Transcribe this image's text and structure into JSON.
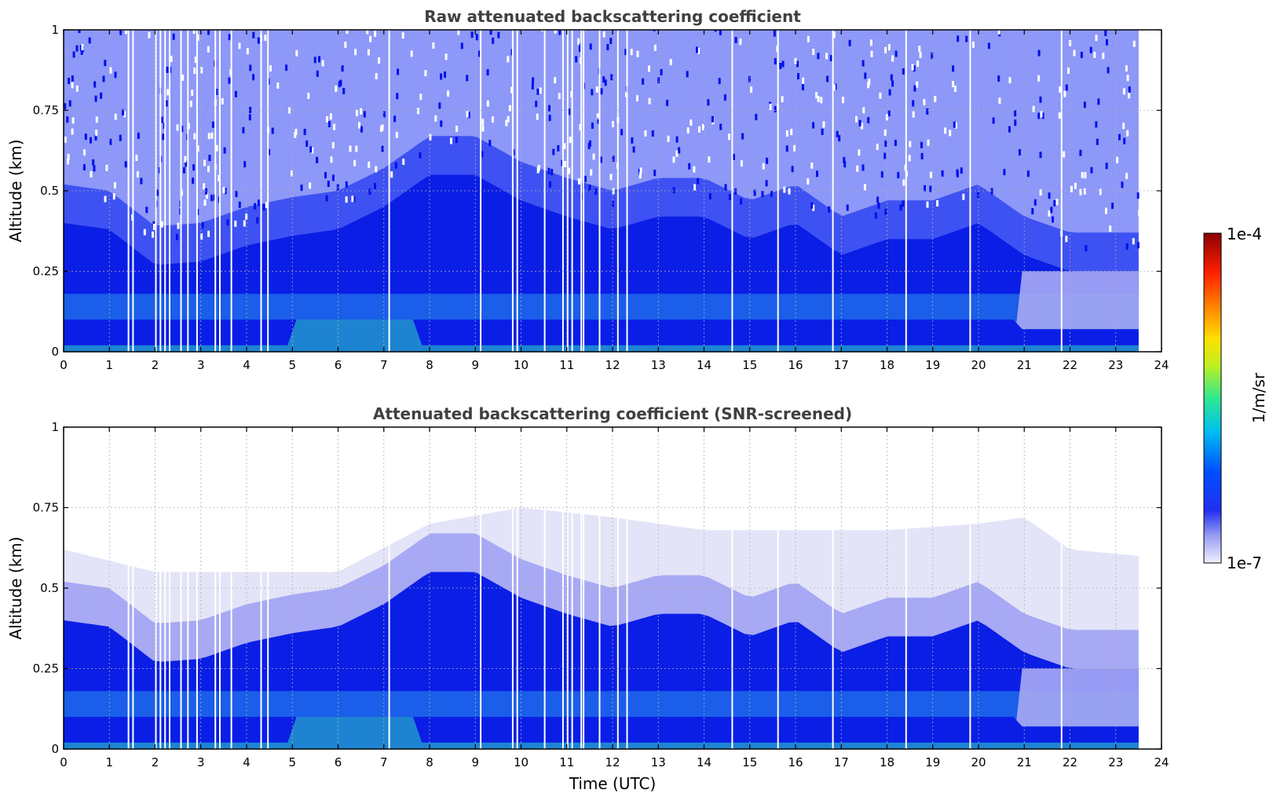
{
  "chart_data": [
    {
      "type": "heatmap",
      "title": "Raw attenuated backscattering coefficient",
      "xlabel": "",
      "ylabel": "Altitude (km)",
      "xlim": [
        0,
        24
      ],
      "ylim": [
        0,
        1
      ],
      "x_ticks": [
        "0",
        "1",
        "2",
        "3",
        "4",
        "5",
        "6",
        "7",
        "8",
        "9",
        "10",
        "11",
        "12",
        "13",
        "14",
        "15",
        "16",
        "17",
        "18",
        "19",
        "20",
        "21",
        "22",
        "23",
        "24"
      ],
      "y_ticks": [
        "0",
        "0.25",
        "0.5",
        "0.75",
        "1"
      ],
      "grid": true,
      "data_end_time": 23.5,
      "dense_layer_top_km": [
        [
          0,
          0.4
        ],
        [
          1,
          0.38
        ],
        [
          2,
          0.27
        ],
        [
          3,
          0.28
        ],
        [
          4,
          0.33
        ],
        [
          5,
          0.36
        ],
        [
          6,
          0.38
        ],
        [
          7,
          0.45
        ],
        [
          8,
          0.55
        ],
        [
          9,
          0.55
        ],
        [
          10,
          0.47
        ],
        [
          11,
          0.42
        ],
        [
          12,
          0.38
        ],
        [
          13,
          0.42
        ],
        [
          14,
          0.42
        ],
        [
          15,
          0.35
        ],
        [
          16,
          0.4
        ],
        [
          17,
          0.3
        ],
        [
          18,
          0.35
        ],
        [
          19,
          0.35
        ],
        [
          20,
          0.4
        ],
        [
          21,
          0.3
        ],
        [
          22,
          0.25
        ],
        [
          23,
          0.25
        ],
        [
          23.5,
          0.25
        ]
      ],
      "gap_times_utc": [
        1.4,
        1.5,
        2.0,
        2.1,
        2.2,
        2.3,
        2.55,
        2.7,
        2.9,
        3.3,
        3.4,
        3.65,
        4.3,
        4.45,
        7.1,
        9.1,
        9.8,
        9.9,
        10.5,
        10.9,
        11.0,
        11.1,
        11.3,
        11.35,
        11.7,
        12.1,
        12.3,
        14.6,
        15.6,
        16.8,
        18.4,
        19.8,
        21.8
      ]
    },
    {
      "type": "heatmap",
      "title": "Attenuated backscattering coefficient (SNR-screened)",
      "xlabel": "Time (UTC)",
      "ylabel": "Altitude (km)",
      "xlim": [
        0,
        24
      ],
      "ylim": [
        0,
        1
      ],
      "x_ticks": [
        "0",
        "1",
        "2",
        "3",
        "4",
        "5",
        "6",
        "7",
        "8",
        "9",
        "10",
        "11",
        "12",
        "13",
        "14",
        "15",
        "16",
        "17",
        "18",
        "19",
        "20",
        "21",
        "22",
        "23",
        "24"
      ],
      "y_ticks": [
        "0",
        "0.25",
        "0.5",
        "0.75",
        "1"
      ],
      "grid": true,
      "data_end_time": 23.5,
      "dense_layer_top_km": [
        [
          0,
          0.4
        ],
        [
          1,
          0.38
        ],
        [
          2,
          0.27
        ],
        [
          3,
          0.28
        ],
        [
          4,
          0.33
        ],
        [
          5,
          0.36
        ],
        [
          6,
          0.38
        ],
        [
          7,
          0.45
        ],
        [
          8,
          0.55
        ],
        [
          9,
          0.55
        ],
        [
          10,
          0.47
        ],
        [
          11,
          0.42
        ],
        [
          12,
          0.38
        ],
        [
          13,
          0.42
        ],
        [
          14,
          0.42
        ],
        [
          15,
          0.35
        ],
        [
          16,
          0.4
        ],
        [
          17,
          0.3
        ],
        [
          18,
          0.35
        ],
        [
          19,
          0.35
        ],
        [
          20,
          0.4
        ],
        [
          21,
          0.3
        ],
        [
          22,
          0.25
        ],
        [
          23,
          0.25
        ],
        [
          23.5,
          0.25
        ]
      ],
      "faint_layer_top_km": [
        [
          0,
          0.62
        ],
        [
          2,
          0.55
        ],
        [
          4,
          0.55
        ],
        [
          6,
          0.55
        ],
        [
          8,
          0.7
        ],
        [
          10,
          0.75
        ],
        [
          12,
          0.72
        ],
        [
          14,
          0.68
        ],
        [
          16,
          0.68
        ],
        [
          18,
          0.68
        ],
        [
          20,
          0.7
        ],
        [
          21,
          0.72
        ],
        [
          22,
          0.62
        ],
        [
          23.5,
          0.6
        ]
      ],
      "gap_times_utc": [
        1.4,
        1.5,
        2.0,
        2.1,
        2.2,
        2.3,
        2.55,
        2.7,
        2.9,
        3.3,
        3.4,
        3.65,
        4.3,
        4.45,
        7.1,
        9.1,
        9.8,
        9.9,
        10.5,
        10.9,
        11.0,
        11.1,
        11.3,
        11.35,
        11.7,
        12.1,
        12.3,
        14.6,
        15.6,
        16.8,
        18.4,
        19.8,
        21.8
      ]
    }
  ],
  "colorbar": {
    "min_label": "1e-7",
    "max_label": "1e-4",
    "unit_label": "1/m/sr",
    "scale": "log"
  },
  "colors": {
    "background": "#ffffff",
    "faint": "#e4e4f8",
    "light": "#a7a9f4",
    "medium": "#3044f2",
    "dense": "#0a1ee6",
    "strong": "#1e6eea",
    "peak": "#30d8c0"
  }
}
